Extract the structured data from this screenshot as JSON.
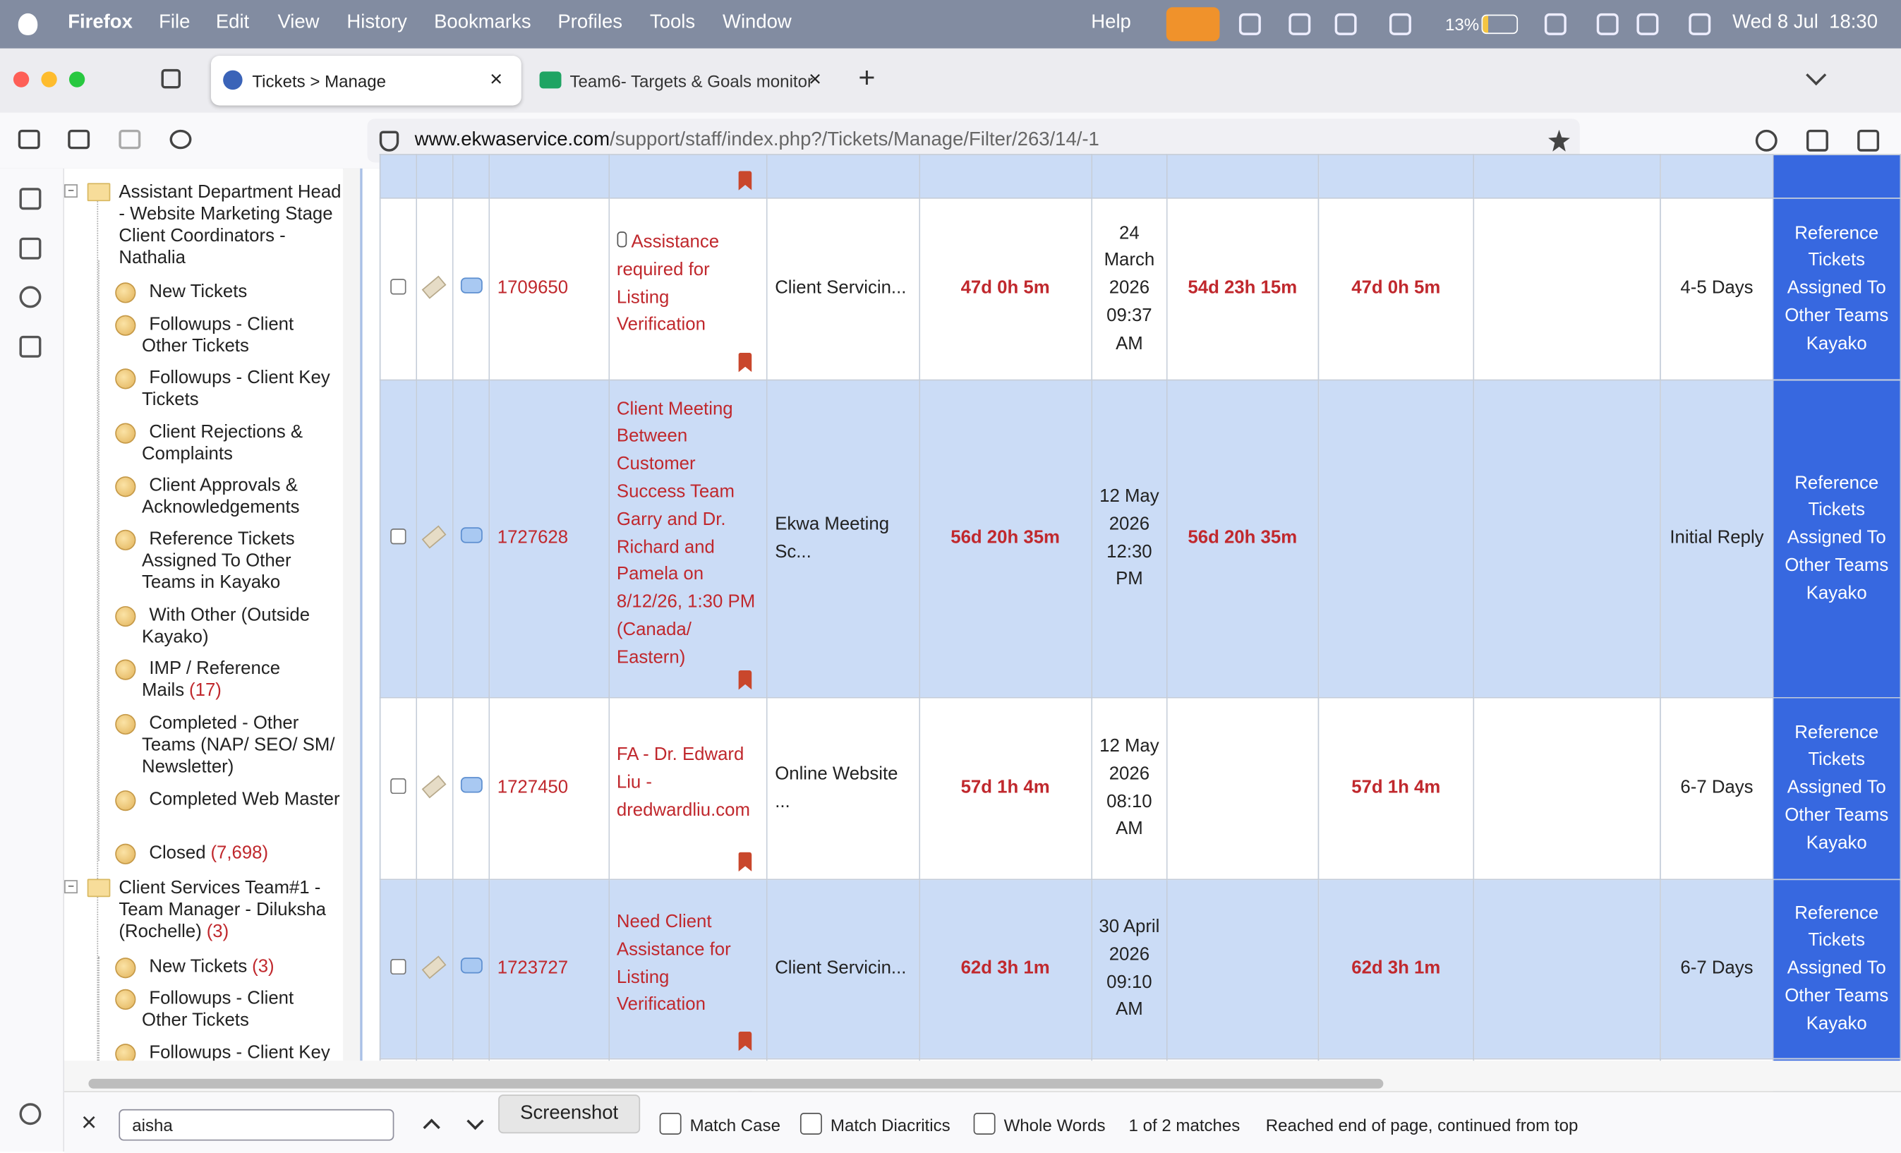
{
  "menu_bar": {
    "app": "Firefox",
    "items": [
      "File",
      "Edit",
      "View",
      "History",
      "Bookmarks",
      "Profiles",
      "Tools",
      "Window"
    ],
    "help": "Help",
    "battery": "13%",
    "datetime": "Wed 8 Jul  18:30"
  },
  "tabs": [
    "Tickets > Manage",
    "Team6- Targets & Goals monitor"
  ],
  "address_bar": {
    "host": "www.ekwaservice.com",
    "path": "/support/staff/index.php?/Tickets/Manage/Filter/263/14/-1"
  },
  "tree": {
    "groups": [
      {
        "label": "Assistant Department Head - Website Marketing Stage Client Coordinators - Nathalia",
        "items": [
          {
            "label": "New Tickets"
          },
          {
            "label": "Followups - Client Other Tickets"
          },
          {
            "label": "Followups - Client Key Tickets"
          },
          {
            "label": "Client Rejections & Complaints"
          },
          {
            "label": "Client Approvals & Acknowledgements"
          },
          {
            "label": "Reference Tickets Assigned To Other Teams in Kayako"
          },
          {
            "label": "With Other (Outside Kayako)"
          },
          {
            "label": "IMP / Reference Mails",
            "count": "(17)"
          },
          {
            "label": "Completed - Other Teams (NAP/ SEO/ SM/ Newsletter)"
          },
          {
            "label": "Completed Web Master"
          },
          {
            "label": "Closed",
            "count": "(7,698)"
          }
        ]
      },
      {
        "label": "Client Services Team#1 - Team Manager - Diluksha (Rochelle)",
        "count": "(3)",
        "items": [
          {
            "label": "New Tickets",
            "count": "(3)"
          },
          {
            "label": "Followups - Client Other Tickets"
          },
          {
            "label": "Followups - Client Key Tickets"
          }
        ]
      }
    ]
  },
  "tickets": {
    "rows": [
      {
        "id": "1709650",
        "subject": "Assistance required for Listing Verification",
        "department": "Client Servicin...",
        "time_1": "47d 0h 5m",
        "date": "24 March 2026 09:37 AM",
        "time_2": "54d 23h 15m",
        "time_3": "47d 0h 5m",
        "sla": "4-5 Days",
        "status": "Reference Tickets Assigned To Other Teams Kayako"
      },
      {
        "id": "1727628",
        "subject": "Client Meeting Between Customer Success Team Garry and Dr. Richard and Pamela on 8/12/26, 1:30 PM (Canada/ Eastern)",
        "department": "Ekwa Meeting Sc...",
        "time_1": "56d 20h 35m",
        "date": "12 May 2026 12:30 PM",
        "time_2": "56d 20h 35m",
        "time_3": null,
        "sla": "Initial Reply",
        "status": "Reference Tickets Assigned To Other Teams Kayako"
      },
      {
        "id": "1727450",
        "subject": "FA - Dr. Edward Liu - dredwardliu.com",
        "department": "Online Website ...",
        "time_1": "57d 1h 4m",
        "date": "12 May 2026 08:10 AM",
        "time_2": null,
        "time_3": "57d 1h 4m",
        "sla": "6-7 Days",
        "status": "Reference Tickets Assigned To Other Teams Kayako"
      },
      {
        "id": "1723727",
        "subject": "Need Client Assistance for Listing Verification",
        "department": "Client Servicin...",
        "time_1": "62d 3h 1m",
        "date": "30 April 2026 09:10 AM",
        "time_2": null,
        "time_3": "62d 3h 1m",
        "sla": "6-7 Days",
        "status": "Reference Tickets Assigned To Other Teams Kayako"
      }
    ]
  },
  "find_bar": {
    "query": "aisha",
    "tooltip": "Screenshot",
    "options": [
      "Match Case",
      "Match Diacritics",
      "Whole Words"
    ],
    "status": "1 of 2 matches",
    "message": "Reached end of page, continued from top"
  }
}
